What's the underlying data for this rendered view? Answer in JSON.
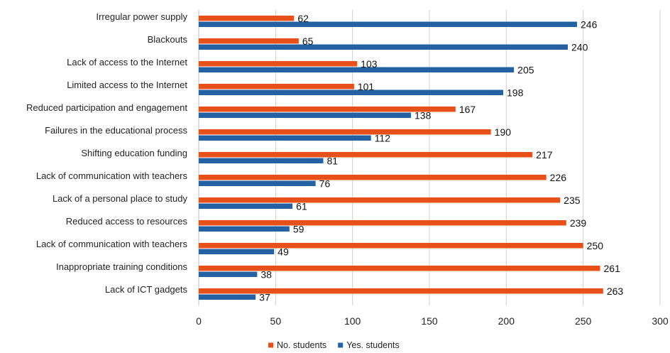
{
  "chart_data": {
    "type": "bar",
    "orientation": "horizontal",
    "categories": [
      "Irregular power supply",
      "Blackouts",
      "Lack of access to the Internet",
      "Limited access to the Internet",
      "Reduced participation and engagement",
      "Failures in the educational process",
      "Shifting education funding",
      "Lack of communication with teachers",
      "Lack of a personal place to study",
      "Reduced access to resources",
      "Lack of communication with teachers",
      "Inappropriate training conditions",
      "Lack of ICT gadgets"
    ],
    "series": [
      {
        "name": "No. students",
        "color": "#E8501A",
        "values": [
          62,
          65,
          103,
          101,
          167,
          190,
          217,
          226,
          235,
          239,
          250,
          261,
          263
        ]
      },
      {
        "name": "Yes. students",
        "color": "#2462A4",
        "values": [
          246,
          240,
          205,
          198,
          138,
          112,
          81,
          76,
          61,
          59,
          49,
          38,
          37
        ]
      }
    ],
    "xlim": [
      0,
      300
    ],
    "xticks": [
      0,
      50,
      100,
      150,
      200,
      250,
      300
    ],
    "grid": true,
    "legend": "bottom-center"
  }
}
